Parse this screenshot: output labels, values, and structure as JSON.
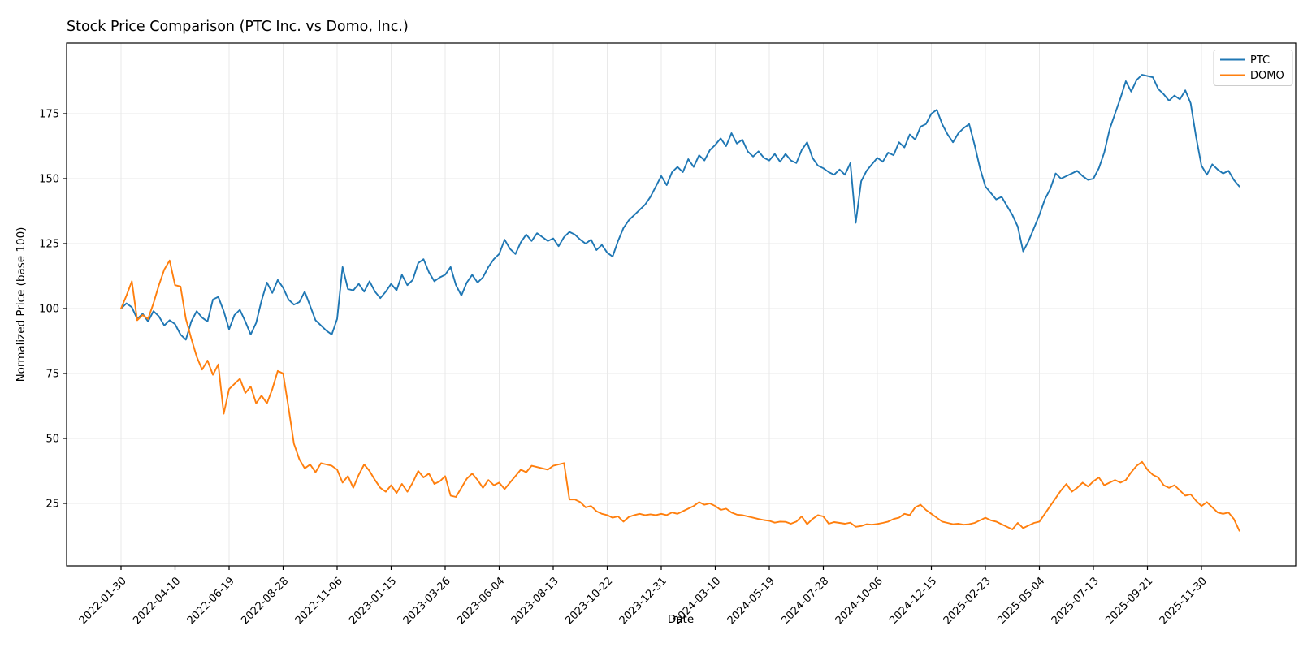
{
  "chart_data": {
    "type": "line",
    "title": "Stock Price Comparison (PTC Inc. vs Domo, Inc.)",
    "xlabel": "Date",
    "ylabel": "Normalized Price (base 100)",
    "grid": true,
    "legend_position": "upper right",
    "x_start_date": "2022-01-30",
    "x_interval_days": 7,
    "ylim": [
      1,
      202
    ],
    "y_ticks": [
      25,
      50,
      75,
      100,
      125,
      150,
      175
    ],
    "x_tick_weeks": [
      0,
      10,
      20,
      30,
      40,
      50,
      60,
      70,
      80,
      90,
      100,
      110,
      120,
      130,
      140,
      150,
      160,
      170,
      180,
      190,
      200
    ],
    "x_tick_labels": [
      "2022-01-30",
      "2022-04-10",
      "2022-06-19",
      "2022-08-28",
      "2022-11-06",
      "2023-01-15",
      "2023-03-26",
      "2023-06-04",
      "2023-08-13",
      "2023-10-22",
      "2023-12-31",
      "2024-03-10",
      "2024-05-19",
      "2024-07-28",
      "2024-10-06",
      "2024-12-15",
      "2025-02-23",
      "2025-05-04",
      "2025-07-13",
      "2025-09-21",
      "2025-11-30"
    ],
    "series": [
      {
        "name": "PTC",
        "color": "#1f77b4",
        "values": [
          100,
          102,
          100.5,
          96,
          98,
          95,
          99,
          97,
          93.5,
          95.5,
          94,
          90,
          88,
          95,
          99,
          96.5,
          95,
          103.5,
          104.5,
          99,
          92,
          97.5,
          99.5,
          95,
          90,
          94.5,
          103,
          110,
          106,
          111,
          108,
          103.5,
          101.5,
          102.5,
          106.5,
          101,
          95.5,
          93.5,
          91.5,
          90,
          96,
          116,
          107.5,
          107,
          109.5,
          106.5,
          110.5,
          106.5,
          104,
          106.5,
          109.5,
          107,
          113,
          109,
          111,
          117.5,
          119,
          114,
          110.5,
          112,
          113,
          116,
          109,
          105,
          110,
          113,
          110,
          112,
          116,
          119,
          121,
          126.5,
          123,
          121,
          125.5,
          128.5,
          126,
          129,
          127.5,
          126,
          127,
          124,
          127.5,
          129.5,
          128.5,
          126.5,
          125,
          126.5,
          122.5,
          124.5,
          121.5,
          120,
          126,
          131,
          134,
          136,
          138,
          140,
          143,
          147,
          151,
          147.5,
          152.5,
          154.5,
          152.5,
          157.5,
          154.5,
          159,
          157,
          161,
          163,
          165.5,
          162.5,
          167.5,
          163.5,
          165,
          160.5,
          158.5,
          160.5,
          158,
          157,
          159.5,
          156.5,
          159.5,
          157,
          156,
          161,
          164,
          158,
          155,
          154,
          152.5,
          151.5,
          153.5,
          151.5,
          156,
          133,
          149,
          153,
          155.5,
          158,
          156.5,
          160,
          159,
          164,
          162,
          167,
          165,
          170,
          171,
          175,
          176.5,
          171,
          167,
          164,
          167.5,
          169.5,
          171,
          163,
          154,
          147,
          144.5,
          142,
          143,
          139.5,
          136,
          131.5,
          122,
          126,
          131,
          136,
          142,
          146,
          152,
          150,
          151,
          152,
          153,
          151,
          149.5,
          150,
          154,
          160,
          169,
          175,
          181,
          187.5,
          183.5,
          188,
          190,
          189.5,
          189,
          184.5,
          182.5,
          180,
          182,
          180.5,
          184,
          179,
          166,
          155,
          151.5,
          155.5,
          153.5,
          152,
          153,
          149.5,
          147
        ]
      },
      {
        "name": "DOMO",
        "color": "#ff7f0e",
        "values": [
          100,
          105,
          110.5,
          95.5,
          97.5,
          96,
          102,
          109,
          115,
          118.5,
          109,
          108.5,
          96,
          88.5,
          81.5,
          76.5,
          80,
          74.5,
          78.5,
          59.5,
          69,
          71,
          73,
          67.5,
          70,
          63.5,
          66.5,
          63.5,
          69,
          76,
          75,
          62,
          48,
          42,
          38.5,
          40,
          37,
          40.5,
          40,
          39.5,
          38,
          33,
          35.5,
          31,
          36,
          40,
          37.5,
          34,
          31,
          29.5,
          32,
          29,
          32.5,
          29.5,
          33,
          37.5,
          35,
          36.5,
          32.5,
          33.5,
          35.5,
          28,
          27.5,
          31,
          34.5,
          36.5,
          34,
          31,
          34,
          32,
          33,
          30.5,
          33,
          35.5,
          38,
          37,
          39.5,
          39,
          38.5,
          38,
          39.5,
          40,
          40.5,
          26.5,
          26.5,
          25.5,
          23.5,
          24,
          22,
          21,
          20.5,
          19.5,
          20,
          18,
          19.8,
          20.5,
          21,
          20.5,
          20.8,
          20.5,
          21,
          20.5,
          21.5,
          21,
          22,
          23,
          24,
          25.5,
          24.5,
          25,
          24,
          22.5,
          23,
          21.5,
          20.7,
          20.5,
          20,
          19.5,
          19,
          18.6,
          18.3,
          17.6,
          18,
          17.9,
          17.2,
          18,
          20,
          17,
          19,
          20.5,
          20,
          17.2,
          17.8,
          17.5,
          17.2,
          17.6,
          16,
          16.3,
          17,
          16.8,
          17.1,
          17.5,
          18,
          19,
          19.5,
          21,
          20.5,
          23.5,
          24.5,
          22.5,
          21,
          19.5,
          18,
          17.5,
          17,
          17.2,
          16.8,
          17,
          17.5,
          18.5,
          19.5,
          18.5,
          18,
          17,
          16,
          15,
          17.5,
          15.5,
          16.5,
          17.5,
          18,
          21,
          24,
          27,
          30,
          32.5,
          29.5,
          31,
          33,
          31.5,
          33.5,
          35,
          32,
          33,
          34,
          33,
          34,
          37,
          39.5,
          41,
          38,
          36,
          35,
          32,
          31,
          32,
          30,
          28,
          28.5,
          26,
          24,
          25.5,
          23.5,
          21.5,
          21,
          21.5,
          19,
          14.5
        ]
      }
    ],
    "colors": {
      "grid": "#e9e9e9",
      "spine": "#000000",
      "background": "#ffffff",
      "legend_border": "#cccccc",
      "text": "#000000"
    }
  },
  "legend": {
    "entries": [
      {
        "label": "PTC",
        "color": "#1f77b4"
      },
      {
        "label": "DOMO",
        "color": "#ff7f0e"
      }
    ]
  }
}
